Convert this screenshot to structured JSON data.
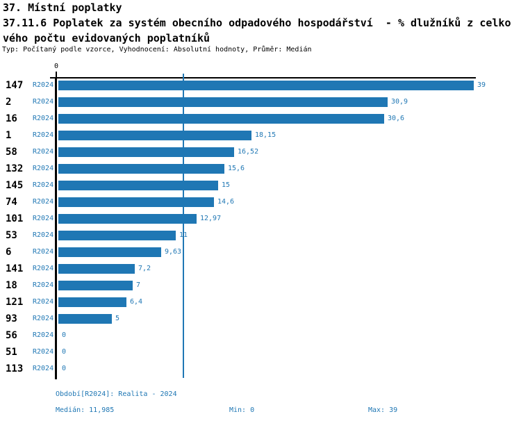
{
  "header": {
    "title": "37. Místní poplatky",
    "subtitle_line1": "37.11.6 Poplatek za systém obecního odpadového hospodářství  - % dlužníků z celko",
    "subtitle_line2": "vého počtu evidovaných poplatníků",
    "meta": "Typ: Počítaný podle vzorce, Vyhodnocení: Absolutní hodnoty, Průměr: Medián"
  },
  "chart_data": {
    "type": "bar",
    "orientation": "horizontal",
    "title": "37.11.6 Poplatek za systém obecního odpadového hospodářství - % dlužníků z celkového počtu evidovaných poplatníků",
    "xlabel": "",
    "ylabel": "",
    "xlim": [
      0,
      39
    ],
    "x_tick_labels": [
      "0"
    ],
    "grid": "single median line",
    "median_value": 11.985,
    "series_period_label": "R2024",
    "rows": [
      {
        "category": "147",
        "period": "R2024",
        "value": 39,
        "value_label": "39"
      },
      {
        "category": "2",
        "period": "R2024",
        "value": 30.9,
        "value_label": "30,9"
      },
      {
        "category": "16",
        "period": "R2024",
        "value": 30.6,
        "value_label": "30,6"
      },
      {
        "category": "1",
        "period": "R2024",
        "value": 18.15,
        "value_label": "18,15"
      },
      {
        "category": "58",
        "period": "R2024",
        "value": 16.52,
        "value_label": "16,52"
      },
      {
        "category": "132",
        "period": "R2024",
        "value": 15.6,
        "value_label": "15,6"
      },
      {
        "category": "145",
        "period": "R2024",
        "value": 15,
        "value_label": "15"
      },
      {
        "category": "74",
        "period": "R2024",
        "value": 14.6,
        "value_label": "14,6"
      },
      {
        "category": "101",
        "period": "R2024",
        "value": 12.97,
        "value_label": "12,97"
      },
      {
        "category": "53",
        "period": "R2024",
        "value": 11,
        "value_label": "11"
      },
      {
        "category": "6",
        "period": "R2024",
        "value": 9.63,
        "value_label": "9,63"
      },
      {
        "category": "141",
        "period": "R2024",
        "value": 7.2,
        "value_label": "7,2"
      },
      {
        "category": "18",
        "period": "R2024",
        "value": 7,
        "value_label": "7"
      },
      {
        "category": "121",
        "period": "R2024",
        "value": 6.4,
        "value_label": "6,4"
      },
      {
        "category": "93",
        "period": "R2024",
        "value": 5,
        "value_label": "5"
      },
      {
        "category": "56",
        "period": "R2024",
        "value": 0,
        "value_label": "0"
      },
      {
        "category": "51",
        "period": "R2024",
        "value": 0,
        "value_label": "0"
      },
      {
        "category": "113",
        "period": "R2024",
        "value": 0,
        "value_label": "0"
      }
    ]
  },
  "footer": {
    "period": "Období[R2024]: Realita - 2024",
    "median": "Medián: 11,985",
    "min": "Min: 0",
    "max": "Max: 39"
  },
  "colors": {
    "bar": "#1f77b4",
    "accent_text": "#1f77b4",
    "axis": "#000000",
    "background": "#ffffff"
  }
}
